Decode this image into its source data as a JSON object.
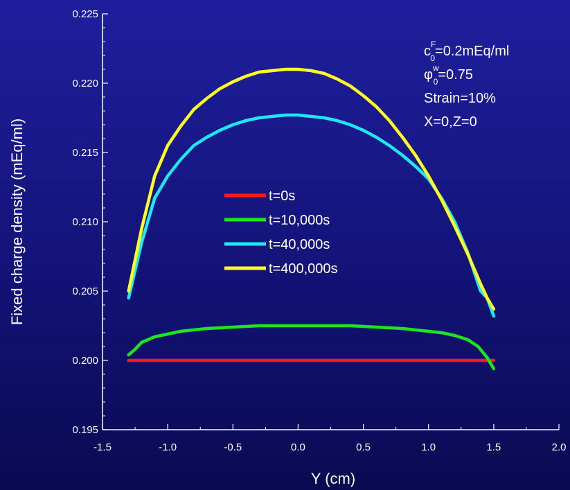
{
  "chart_data": {
    "type": "line",
    "xlabel": "Y (cm)",
    "ylabel": "Fixed charge density (mEq/ml)",
    "xlim": [
      -1.5,
      2.0
    ],
    "ylim": [
      0.195,
      0.225
    ],
    "xticks": [
      -1.5,
      -1.0,
      -0.5,
      0.0,
      0.5,
      1.0,
      1.5,
      2.0
    ],
    "xtick_labels": [
      "-1.5",
      "-1.0",
      "-0.5",
      "0.0",
      "0.5",
      "1.0",
      "1.5",
      "2.0"
    ],
    "yticks": [
      0.195,
      0.2,
      0.205,
      0.21,
      0.215,
      0.22,
      0.225
    ],
    "ytick_labels": [
      "0.195",
      "0.200",
      "0.205",
      "0.210",
      "0.215",
      "0.220",
      "0.225"
    ],
    "grid": false,
    "legend_position": "center",
    "annotation_lines": [
      {
        "base": "c",
        "sup": "F",
        "sub": "0",
        "rest": "=0.2mEq/ml"
      },
      {
        "base": "φ",
        "sup": "w",
        "sub": "0",
        "rest": "=0.75"
      },
      {
        "base": "",
        "sup": "",
        "sub": "",
        "rest": "Strain=10%"
      },
      {
        "base": "",
        "sup": "",
        "sub": "",
        "rest": "X=0,Z=0"
      }
    ],
    "series": [
      {
        "name": "t=0s",
        "color": "#ff1a1a",
        "x": [
          -1.3,
          -0.5,
          0.0,
          0.5,
          1.0,
          1.5
        ],
        "y": [
          0.2,
          0.2,
          0.2,
          0.2,
          0.2,
          0.2
        ]
      },
      {
        "name": "t=10,000s",
        "color": "#1ee61e",
        "x": [
          -1.3,
          -1.25,
          -1.2,
          -1.1,
          -1.0,
          -0.9,
          -0.7,
          -0.5,
          -0.3,
          -0.1,
          0.0,
          0.1,
          0.2,
          0.4,
          0.6,
          0.8,
          1.0,
          1.1,
          1.2,
          1.3,
          1.38,
          1.45,
          1.5
        ],
        "y": [
          0.2004,
          0.2008,
          0.2013,
          0.2017,
          0.2019,
          0.2021,
          0.2023,
          0.2024,
          0.2025,
          0.2025,
          0.2025,
          0.2025,
          0.2025,
          0.2025,
          0.2024,
          0.2023,
          0.2021,
          0.202,
          0.2018,
          0.2015,
          0.201,
          0.2002,
          0.1994
        ]
      },
      {
        "name": "t=40,000s",
        "color": "#1fe7f5",
        "x": [
          -1.3,
          -1.2,
          -1.1,
          -1.0,
          -0.9,
          -0.8,
          -0.7,
          -0.6,
          -0.5,
          -0.4,
          -0.3,
          -0.2,
          -0.1,
          0.0,
          0.1,
          0.2,
          0.3,
          0.4,
          0.5,
          0.6,
          0.7,
          0.8,
          0.9,
          1.0,
          1.1,
          1.2,
          1.3,
          1.4,
          1.45,
          1.5
        ],
        "y": [
          0.2045,
          0.2085,
          0.2117,
          0.2133,
          0.2145,
          0.2155,
          0.2161,
          0.2166,
          0.217,
          0.2173,
          0.2175,
          0.2176,
          0.2177,
          0.2177,
          0.2176,
          0.2175,
          0.2173,
          0.217,
          0.2166,
          0.2161,
          0.2155,
          0.2148,
          0.214,
          0.2131,
          0.2117,
          0.21,
          0.2078,
          0.205,
          0.2045,
          0.2032
        ]
      },
      {
        "name": "t=400,000s",
        "color": "#ffff22",
        "x": [
          -1.3,
          -1.2,
          -1.1,
          -1.0,
          -0.9,
          -0.8,
          -0.7,
          -0.6,
          -0.5,
          -0.4,
          -0.3,
          -0.2,
          -0.1,
          0.0,
          0.1,
          0.2,
          0.3,
          0.4,
          0.5,
          0.6,
          0.7,
          0.8,
          0.9,
          1.0,
          1.1,
          1.2,
          1.3,
          1.4,
          1.45,
          1.5
        ],
        "y": [
          0.205,
          0.2095,
          0.2133,
          0.2155,
          0.2169,
          0.2181,
          0.2189,
          0.2196,
          0.2201,
          0.2205,
          0.2208,
          0.2209,
          0.221,
          0.221,
          0.2209,
          0.2207,
          0.2203,
          0.2198,
          0.2191,
          0.2183,
          0.2173,
          0.2161,
          0.2148,
          0.2133,
          0.2116,
          0.2097,
          0.2077,
          0.2055,
          0.2045,
          0.2037
        ]
      }
    ]
  }
}
